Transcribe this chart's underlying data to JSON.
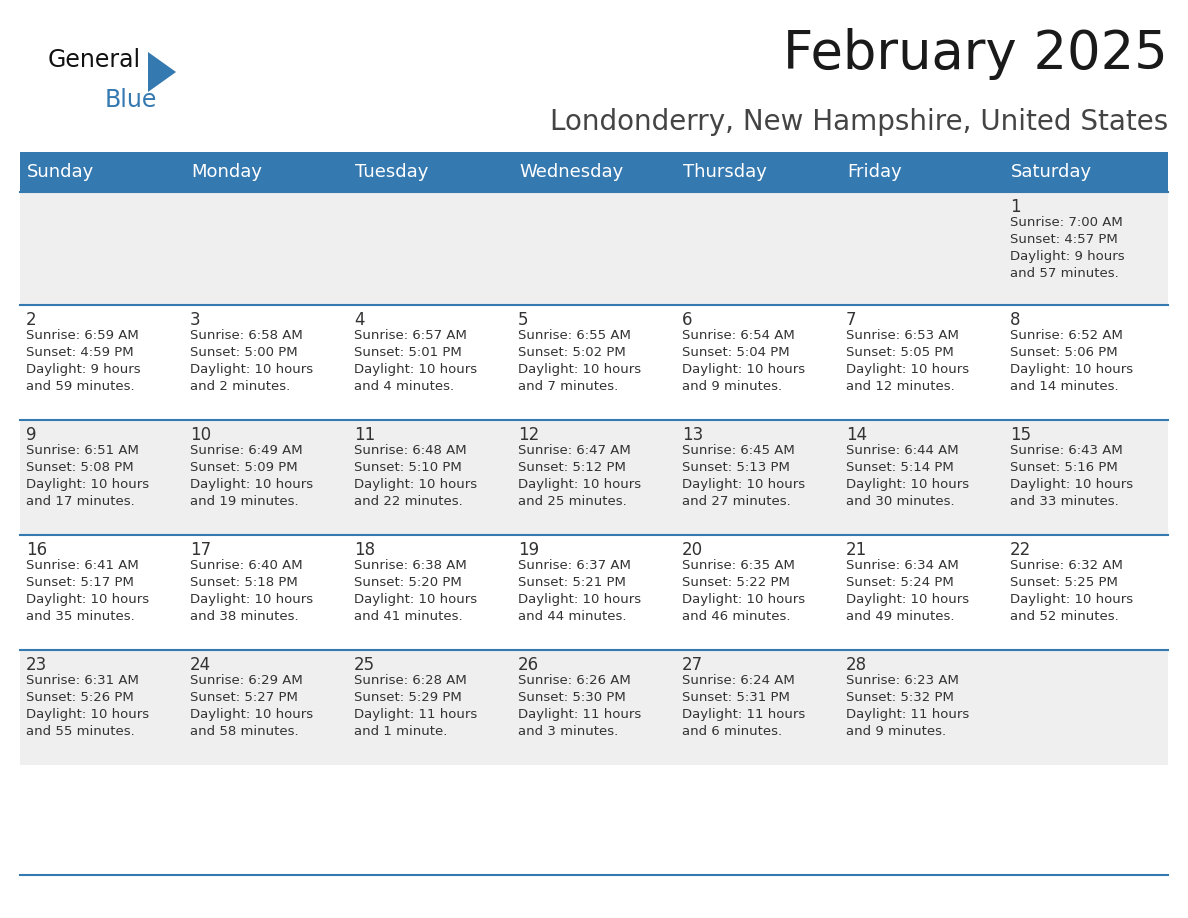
{
  "title": "February 2025",
  "subtitle": "Londonderry, New Hampshire, United States",
  "header_color": "#3579b1",
  "header_text_color": "#ffffff",
  "day_names": [
    "Sunday",
    "Monday",
    "Tuesday",
    "Wednesday",
    "Thursday",
    "Friday",
    "Saturday"
  ],
  "bg_color": "#ffffff",
  "cell_bg_even": "#efefef",
  "cell_bg_odd": "#ffffff",
  "border_color": "#3579b1",
  "text_color": "#333333",
  "days": [
    {
      "day": 1,
      "col": 6,
      "row": 0,
      "sunrise": "7:00 AM",
      "sunset": "4:57 PM",
      "daylight_l1": "Daylight: 9 hours",
      "daylight_l2": "and 57 minutes."
    },
    {
      "day": 2,
      "col": 0,
      "row": 1,
      "sunrise": "6:59 AM",
      "sunset": "4:59 PM",
      "daylight_l1": "Daylight: 9 hours",
      "daylight_l2": "and 59 minutes."
    },
    {
      "day": 3,
      "col": 1,
      "row": 1,
      "sunrise": "6:58 AM",
      "sunset": "5:00 PM",
      "daylight_l1": "Daylight: 10 hours",
      "daylight_l2": "and 2 minutes."
    },
    {
      "day": 4,
      "col": 2,
      "row": 1,
      "sunrise": "6:57 AM",
      "sunset": "5:01 PM",
      "daylight_l1": "Daylight: 10 hours",
      "daylight_l2": "and 4 minutes."
    },
    {
      "day": 5,
      "col": 3,
      "row": 1,
      "sunrise": "6:55 AM",
      "sunset": "5:02 PM",
      "daylight_l1": "Daylight: 10 hours",
      "daylight_l2": "and 7 minutes."
    },
    {
      "day": 6,
      "col": 4,
      "row": 1,
      "sunrise": "6:54 AM",
      "sunset": "5:04 PM",
      "daylight_l1": "Daylight: 10 hours",
      "daylight_l2": "and 9 minutes."
    },
    {
      "day": 7,
      "col": 5,
      "row": 1,
      "sunrise": "6:53 AM",
      "sunset": "5:05 PM",
      "daylight_l1": "Daylight: 10 hours",
      "daylight_l2": "and 12 minutes."
    },
    {
      "day": 8,
      "col": 6,
      "row": 1,
      "sunrise": "6:52 AM",
      "sunset": "5:06 PM",
      "daylight_l1": "Daylight: 10 hours",
      "daylight_l2": "and 14 minutes."
    },
    {
      "day": 9,
      "col": 0,
      "row": 2,
      "sunrise": "6:51 AM",
      "sunset": "5:08 PM",
      "daylight_l1": "Daylight: 10 hours",
      "daylight_l2": "and 17 minutes."
    },
    {
      "day": 10,
      "col": 1,
      "row": 2,
      "sunrise": "6:49 AM",
      "sunset": "5:09 PM",
      "daylight_l1": "Daylight: 10 hours",
      "daylight_l2": "and 19 minutes."
    },
    {
      "day": 11,
      "col": 2,
      "row": 2,
      "sunrise": "6:48 AM",
      "sunset": "5:10 PM",
      "daylight_l1": "Daylight: 10 hours",
      "daylight_l2": "and 22 minutes."
    },
    {
      "day": 12,
      "col": 3,
      "row": 2,
      "sunrise": "6:47 AM",
      "sunset": "5:12 PM",
      "daylight_l1": "Daylight: 10 hours",
      "daylight_l2": "and 25 minutes."
    },
    {
      "day": 13,
      "col": 4,
      "row": 2,
      "sunrise": "6:45 AM",
      "sunset": "5:13 PM",
      "daylight_l1": "Daylight: 10 hours",
      "daylight_l2": "and 27 minutes."
    },
    {
      "day": 14,
      "col": 5,
      "row": 2,
      "sunrise": "6:44 AM",
      "sunset": "5:14 PM",
      "daylight_l1": "Daylight: 10 hours",
      "daylight_l2": "and 30 minutes."
    },
    {
      "day": 15,
      "col": 6,
      "row": 2,
      "sunrise": "6:43 AM",
      "sunset": "5:16 PM",
      "daylight_l1": "Daylight: 10 hours",
      "daylight_l2": "and 33 minutes."
    },
    {
      "day": 16,
      "col": 0,
      "row": 3,
      "sunrise": "6:41 AM",
      "sunset": "5:17 PM",
      "daylight_l1": "Daylight: 10 hours",
      "daylight_l2": "and 35 minutes."
    },
    {
      "day": 17,
      "col": 1,
      "row": 3,
      "sunrise": "6:40 AM",
      "sunset": "5:18 PM",
      "daylight_l1": "Daylight: 10 hours",
      "daylight_l2": "and 38 minutes."
    },
    {
      "day": 18,
      "col": 2,
      "row": 3,
      "sunrise": "6:38 AM",
      "sunset": "5:20 PM",
      "daylight_l1": "Daylight: 10 hours",
      "daylight_l2": "and 41 minutes."
    },
    {
      "day": 19,
      "col": 3,
      "row": 3,
      "sunrise": "6:37 AM",
      "sunset": "5:21 PM",
      "daylight_l1": "Daylight: 10 hours",
      "daylight_l2": "and 44 minutes."
    },
    {
      "day": 20,
      "col": 4,
      "row": 3,
      "sunrise": "6:35 AM",
      "sunset": "5:22 PM",
      "daylight_l1": "Daylight: 10 hours",
      "daylight_l2": "and 46 minutes."
    },
    {
      "day": 21,
      "col": 5,
      "row": 3,
      "sunrise": "6:34 AM",
      "sunset": "5:24 PM",
      "daylight_l1": "Daylight: 10 hours",
      "daylight_l2": "and 49 minutes."
    },
    {
      "day": 22,
      "col": 6,
      "row": 3,
      "sunrise": "6:32 AM",
      "sunset": "5:25 PM",
      "daylight_l1": "Daylight: 10 hours",
      "daylight_l2": "and 52 minutes."
    },
    {
      "day": 23,
      "col": 0,
      "row": 4,
      "sunrise": "6:31 AM",
      "sunset": "5:26 PM",
      "daylight_l1": "Daylight: 10 hours",
      "daylight_l2": "and 55 minutes."
    },
    {
      "day": 24,
      "col": 1,
      "row": 4,
      "sunrise": "6:29 AM",
      "sunset": "5:27 PM",
      "daylight_l1": "Daylight: 10 hours",
      "daylight_l2": "and 58 minutes."
    },
    {
      "day": 25,
      "col": 2,
      "row": 4,
      "sunrise": "6:28 AM",
      "sunset": "5:29 PM",
      "daylight_l1": "Daylight: 11 hours",
      "daylight_l2": "and 1 minute."
    },
    {
      "day": 26,
      "col": 3,
      "row": 4,
      "sunrise": "6:26 AM",
      "sunset": "5:30 PM",
      "daylight_l1": "Daylight: 11 hours",
      "daylight_l2": "and 3 minutes."
    },
    {
      "day": 27,
      "col": 4,
      "row": 4,
      "sunrise": "6:24 AM",
      "sunset": "5:31 PM",
      "daylight_l1": "Daylight: 11 hours",
      "daylight_l2": "and 6 minutes."
    },
    {
      "day": 28,
      "col": 5,
      "row": 4,
      "sunrise": "6:23 AM",
      "sunset": "5:32 PM",
      "daylight_l1": "Daylight: 11 hours",
      "daylight_l2": "and 9 minutes."
    }
  ],
  "num_rows": 5,
  "title_fontsize": 38,
  "subtitle_fontsize": 20,
  "header_fontsize": 13,
  "day_num_fontsize": 12,
  "info_fontsize": 9.5,
  "logo_general_fontsize": 17,
  "logo_blue_fontsize": 17
}
